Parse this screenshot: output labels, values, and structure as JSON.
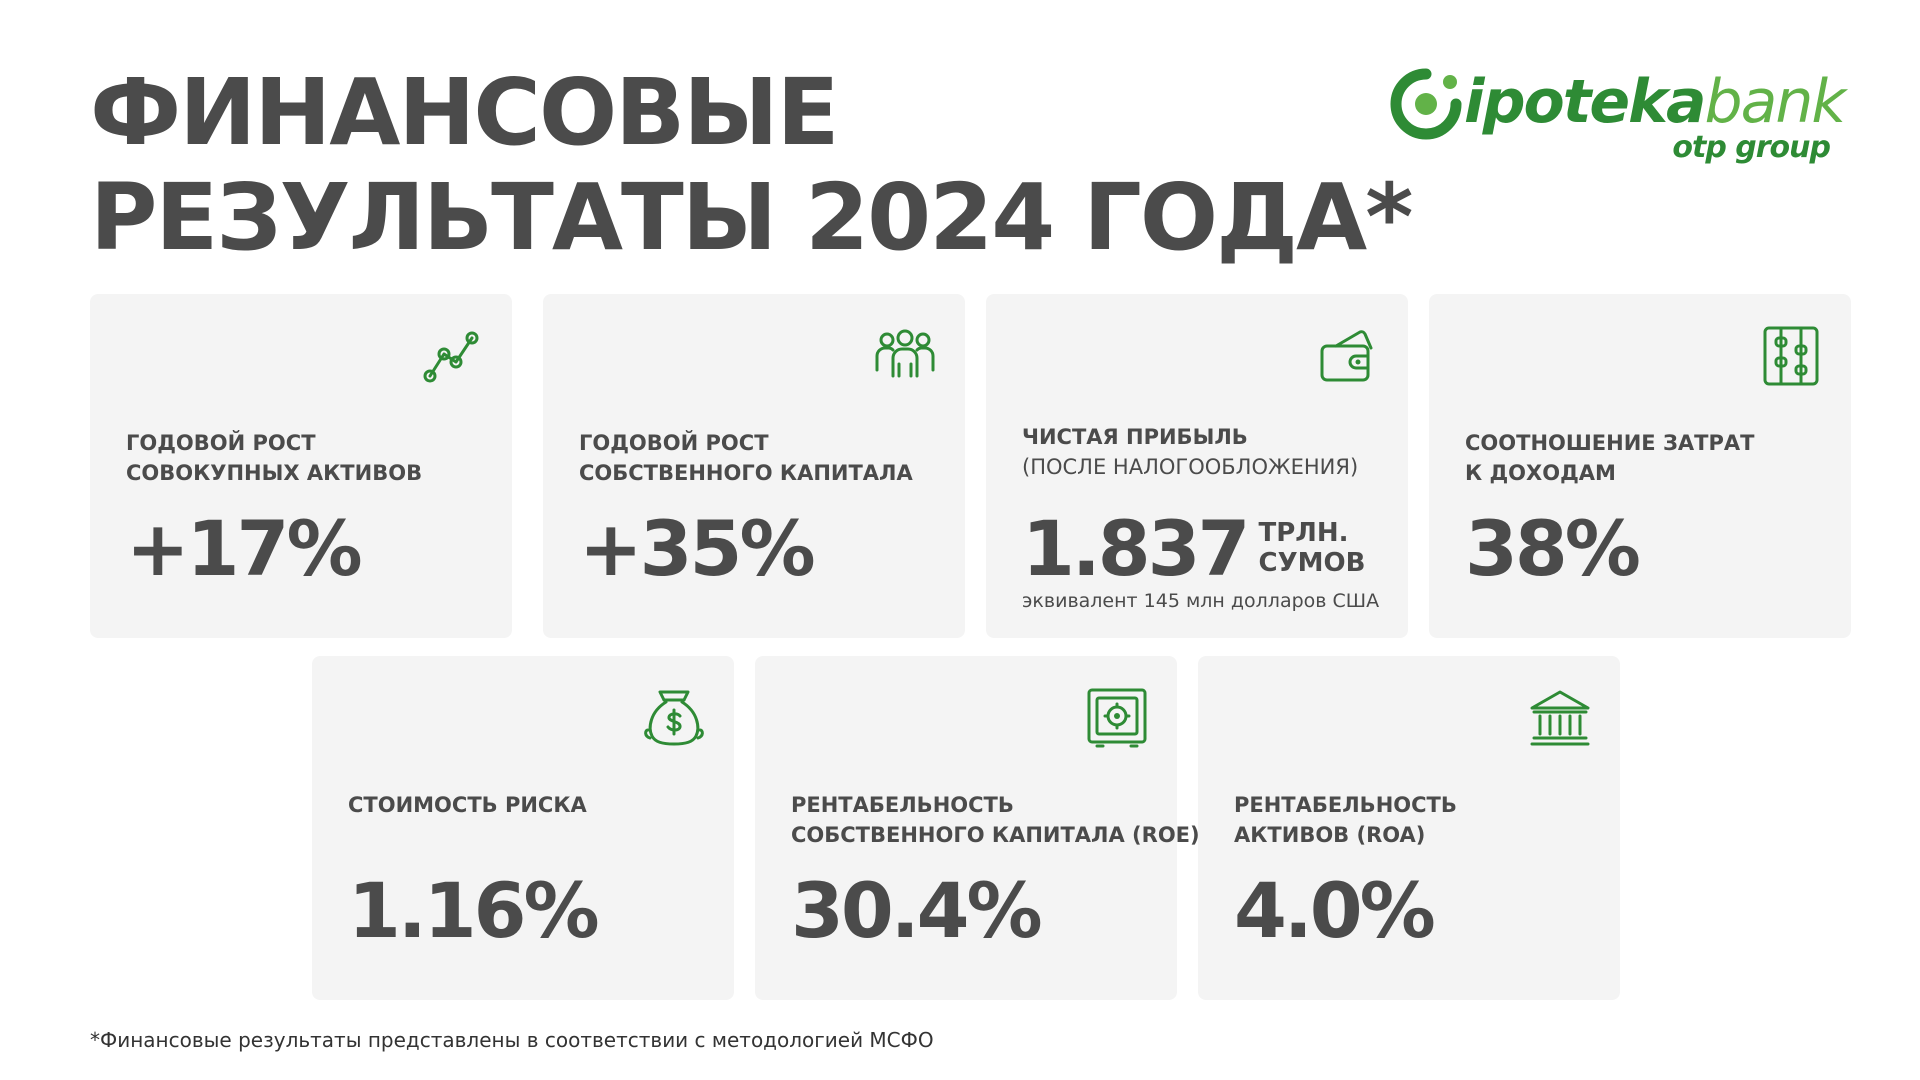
{
  "title": {
    "line1": "ФИНАНСОВЫЕ",
    "line2": "РЕЗУЛЬТАТЫ 2024 ГОДА*"
  },
  "logo": {
    "word_ipoteka": "ipoteka",
    "word_bank": "bank",
    "sub": "otp group"
  },
  "cards": [
    {
      "label_line1": "ГОДОВОЙ РОСТ",
      "label_line2": "СОВОКУПНЫХ АКТИВОВ",
      "value": "+17%",
      "icon": "growth-chart-icon"
    },
    {
      "label_line1": "ГОДОВОЙ РОСТ",
      "label_line2": "СОБСТВЕННОГО КАПИТАЛА",
      "value": "+35%",
      "icon": "people-group-icon"
    },
    {
      "label_line1": "ЧИСТАЯ ПРИБЫЛЬ",
      "label_sub": "(ПОСЛЕ НАЛОГООБЛОЖЕНИЯ)",
      "value": "1.837",
      "unit_line1": "ТРЛН.",
      "unit_line2": "СУМОВ",
      "note": "эквивалент 145 млн долларов США",
      "icon": "wallet-icon"
    },
    {
      "label_line1": "СООТНОШЕНИЕ ЗАТРАТ",
      "label_line2": "К ДОХОДАМ",
      "value": "38%",
      "icon": "abacus-icon"
    },
    {
      "label_line1": "СТОИМОСТЬ РИСКА",
      "value": "1.16%",
      "icon": "money-bag-icon"
    },
    {
      "label_line1": "РЕНТАБЕЛЬНОСТЬ",
      "label_line2": "СОБСТВЕННОГО КАПИТАЛА (ROE)",
      "value": "30.4%",
      "icon": "safe-icon"
    },
    {
      "label_line1": "РЕНТАБЕЛЬНОСТЬ",
      "label_line2": "АКТИВОВ (ROA)",
      "value": "4.0%",
      "icon": "bank-building-icon"
    }
  ],
  "footnote": "*Финансовые результаты представлены в соответствии с методологией МСФО",
  "colors": {
    "accent": "#2e8b35",
    "accent_light": "#62b248",
    "text": "#4b4b4b",
    "card_bg": "#f4f4f4"
  }
}
